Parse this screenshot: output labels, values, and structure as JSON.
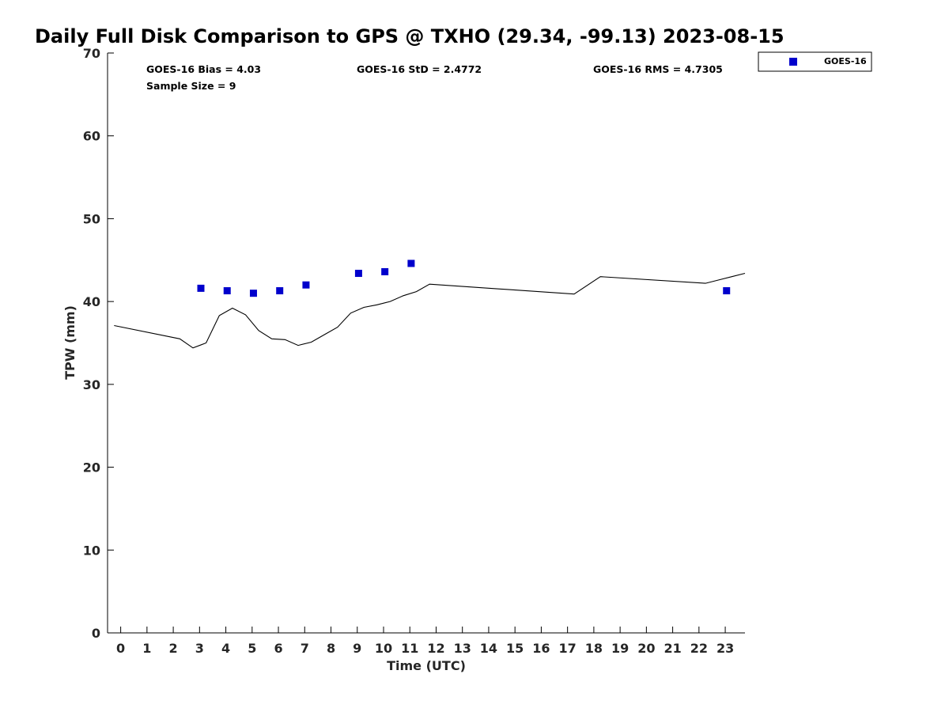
{
  "chart_data": {
    "type": "scatter",
    "title": "Daily Full Disk Comparison to GPS @ TXHO (29.34, -99.13) 2023-08-15",
    "xlabel": "Time (UTC)",
    "ylabel": "TPW (mm)",
    "xlim": [
      -0.5,
      23.75
    ],
    "ylim": [
      0,
      70
    ],
    "x_ticks": [
      "0",
      "1",
      "2",
      "3",
      "4",
      "5",
      "6",
      "7",
      "8",
      "9",
      "10",
      "11",
      "12",
      "13",
      "14",
      "15",
      "16",
      "17",
      "18",
      "19",
      "20",
      "21",
      "22",
      "23"
    ],
    "y_ticks": [
      "0",
      "10",
      "20",
      "30",
      "40",
      "50",
      "60",
      "70"
    ],
    "grid": false,
    "legend_position": "top-right",
    "series": [
      {
        "name": "GOES-16",
        "type": "scatter",
        "color": "#0000cc",
        "marker": "square",
        "points": [
          [
            3.05,
            41.6
          ],
          [
            4.05,
            41.3
          ],
          [
            5.05,
            41.0
          ],
          [
            6.05,
            41.3
          ],
          [
            7.05,
            42.0
          ],
          [
            9.05,
            43.4
          ],
          [
            10.05,
            43.6
          ],
          [
            11.05,
            44.6
          ],
          [
            23.05,
            41.3
          ]
        ]
      },
      {
        "type": "line",
        "color": "#000000",
        "points": [
          [
            -0.25,
            37.1
          ],
          [
            2.25,
            35.5
          ],
          [
            2.75,
            34.4
          ],
          [
            3.25,
            35.0
          ],
          [
            3.75,
            38.3
          ],
          [
            4.25,
            39.2
          ],
          [
            4.75,
            38.4
          ],
          [
            5.25,
            36.5
          ],
          [
            5.75,
            35.5
          ],
          [
            6.25,
            35.4
          ],
          [
            6.75,
            34.7
          ],
          [
            7.25,
            35.1
          ],
          [
            7.75,
            36.0
          ],
          [
            8.25,
            36.9
          ],
          [
            8.75,
            38.6
          ],
          [
            9.25,
            39.3
          ],
          [
            9.75,
            39.6
          ],
          [
            10.25,
            40.0
          ],
          [
            10.75,
            40.7
          ],
          [
            11.25,
            41.2
          ],
          [
            11.75,
            42.1
          ],
          [
            17.25,
            40.9
          ],
          [
            18.25,
            43.0
          ],
          [
            22.25,
            42.2
          ],
          [
            22.75,
            42.6
          ],
          [
            23.25,
            43.0
          ],
          [
            23.75,
            43.4
          ]
        ]
      }
    ],
    "annotations": {
      "bias": "GOES-16 Bias = 4.03",
      "std": "GOES-16 StD = 2.4772",
      "rms": "GOES-16 RMS = 4.7305",
      "sample": "Sample Size = 9"
    },
    "legend": {
      "label": "GOES-16"
    }
  }
}
